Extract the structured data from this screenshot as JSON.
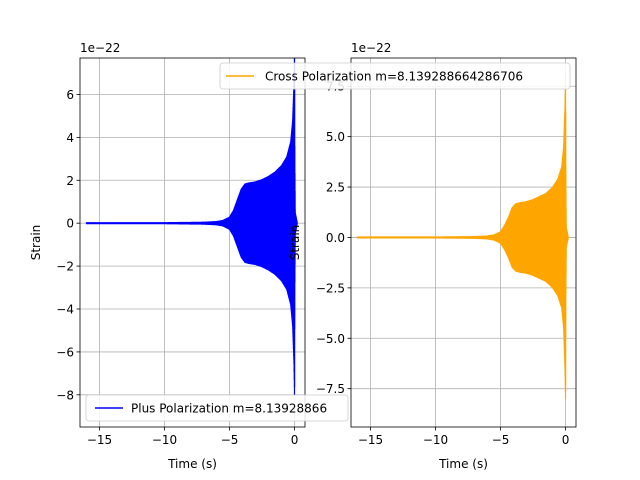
{
  "chart_data": [
    {
      "type": "line",
      "title": "",
      "xlabel": "Time (s)",
      "ylabel": "Strain",
      "offset_text": "1e−22",
      "xlim": [
        -16.5,
        0.8
      ],
      "ylim": [
        -9.5,
        7.7
      ],
      "xticks": [
        -15,
        -10,
        -5,
        0
      ],
      "xtick_labels": [
        "−15",
        "−10",
        "−5",
        "0"
      ],
      "yticks": [
        -8,
        -6,
        -4,
        -2,
        0,
        2,
        4,
        6
      ],
      "ytick_labels": [
        "−8",
        "−6",
        "−4",
        "−2",
        "0",
        "2",
        "4",
        "6"
      ],
      "grid": true,
      "legend_position": "lower-left",
      "series": [
        {
          "name": "Plus Polarization m=8.13928866",
          "color": "#0000ff",
          "x": [
            -16.0,
            -10.0,
            -7.0,
            -6.0,
            -5.5,
            -5.0,
            -4.7,
            -4.4,
            -4.1,
            -3.8,
            -3.5,
            -3.0,
            -2.5,
            -2.0,
            -1.5,
            -1.0,
            -0.6,
            -0.3,
            -0.15,
            -0.05,
            0.0,
            0.02,
            0.05,
            0.2
          ],
          "envelope": [
            0.05,
            0.05,
            0.07,
            0.1,
            0.15,
            0.3,
            0.6,
            1.1,
            1.6,
            1.85,
            1.9,
            1.95,
            2.05,
            2.2,
            2.4,
            2.7,
            3.1,
            3.8,
            4.8,
            6.5,
            8.3,
            3.0,
            0.5,
            0.05
          ]
        }
      ]
    },
    {
      "type": "line",
      "title": "",
      "xlabel": "Time (s)",
      "ylabel": "Strain",
      "offset_text": "1e−22",
      "xlim": [
        -16.5,
        0.8
      ],
      "ylim": [
        -9.4,
        8.9
      ],
      "xticks": [
        -15,
        -10,
        -5,
        0
      ],
      "xtick_labels": [
        "−15",
        "−10",
        "−5",
        "0"
      ],
      "yticks": [
        -7.5,
        -5.0,
        -2.5,
        0.0,
        2.5,
        5.0,
        7.5
      ],
      "ytick_labels": [
        "−7.5",
        "−5.0",
        "−2.5",
        "0.0",
        "2.5",
        "5.0",
        "7.5"
      ],
      "grid": true,
      "legend_position": "top-right",
      "series": [
        {
          "name": "Cross Polarization m=8.139288664286706",
          "color": "#ffa500",
          "x": [
            -16.0,
            -10.0,
            -7.0,
            -6.0,
            -5.5,
            -5.0,
            -4.7,
            -4.4,
            -4.1,
            -3.8,
            -3.5,
            -3.0,
            -2.5,
            -2.0,
            -1.5,
            -1.0,
            -0.6,
            -0.3,
            -0.15,
            -0.05,
            0.0,
            0.02,
            0.05,
            0.2
          ],
          "envelope": [
            0.05,
            0.05,
            0.07,
            0.1,
            0.15,
            0.3,
            0.6,
            1.0,
            1.5,
            1.7,
            1.75,
            1.8,
            1.9,
            2.05,
            2.2,
            2.5,
            2.9,
            3.5,
            4.5,
            6.5,
            8.3,
            3.0,
            0.5,
            0.05
          ]
        }
      ]
    }
  ]
}
